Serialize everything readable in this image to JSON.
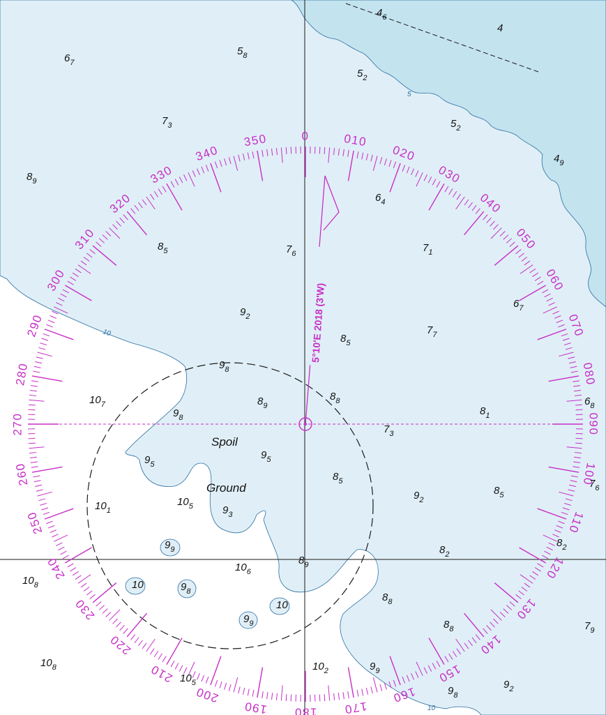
{
  "colors": {
    "deep_water": "#ffffff",
    "shallow_water": "#e0eff7",
    "drying_shoal": "#c3e3ef",
    "grid_line": "#1a1a1a",
    "compass": "#c72ec7",
    "depth_contour": "#2a6da0",
    "sounding_text": "#111111"
  },
  "compass_rose": {
    "bearing_labels": [
      "0",
      "010",
      "020",
      "030",
      "040",
      "050",
      "060",
      "070",
      "080",
      "090",
      "100",
      "110",
      "120",
      "130",
      "140",
      "150",
      "160",
      "170",
      "180",
      "190",
      "200",
      "210",
      "220",
      "230",
      "240",
      "250",
      "260",
      "270",
      "280",
      "290",
      "300",
      "310",
      "320",
      "330",
      "340",
      "350"
    ],
    "magnetic_variation": "5°10'E 2018 (3'W)"
  },
  "contour_labels": [
    "10",
    "5",
    "10"
  ],
  "area_label": {
    "line1": "Spoil",
    "line2": "Ground"
  },
  "soundings": [
    {
      "m": "6",
      "d": "7"
    },
    {
      "m": "5",
      "d": "8"
    },
    {
      "m": "4",
      "d": "6"
    },
    {
      "m": "4",
      "d": ""
    },
    {
      "m": "5",
      "d": "2"
    },
    {
      "m": "7",
      "d": "3"
    },
    {
      "m": "5",
      "d": "2"
    },
    {
      "m": "8",
      "d": "9"
    },
    {
      "m": "4",
      "d": "9"
    },
    {
      "m": "6",
      "d": "4"
    },
    {
      "m": "8",
      "d": "5"
    },
    {
      "m": "7",
      "d": "6"
    },
    {
      "m": "7",
      "d": "1"
    },
    {
      "m": "6",
      "d": "7"
    },
    {
      "m": "9",
      "d": "2"
    },
    {
      "m": "7",
      "d": "7"
    },
    {
      "m": "8",
      "d": "5"
    },
    {
      "m": "9",
      "d": "8"
    },
    {
      "m": "10",
      "d": "7"
    },
    {
      "m": "8",
      "d": "9"
    },
    {
      "m": "8",
      "d": "8"
    },
    {
      "m": "6",
      "d": "8"
    },
    {
      "m": "9",
      "d": "8"
    },
    {
      "m": "8",
      "d": "1"
    },
    {
      "m": "7",
      "d": "3"
    },
    {
      "m": "9",
      "d": "5"
    },
    {
      "m": "9",
      "d": "5"
    },
    {
      "m": "8",
      "d": "5"
    },
    {
      "m": "7",
      "d": "6"
    },
    {
      "m": "10",
      "d": "1"
    },
    {
      "m": "10",
      "d": "5"
    },
    {
      "m": "9",
      "d": "3"
    },
    {
      "m": "9",
      "d": "2"
    },
    {
      "m": "8",
      "d": "5"
    },
    {
      "m": "9",
      "d": "9"
    },
    {
      "m": "8",
      "d": "2"
    },
    {
      "m": "8",
      "d": "2"
    },
    {
      "m": "10",
      "d": "8"
    },
    {
      "m": "8",
      "d": "9"
    },
    {
      "m": "10",
      "d": "6"
    },
    {
      "m": "10",
      "d": ""
    },
    {
      "m": "9",
      "d": "8"
    },
    {
      "m": "8",
      "d": "8"
    },
    {
      "m": "10",
      "d": ""
    },
    {
      "m": "9",
      "d": "9"
    },
    {
      "m": "8",
      "d": "8"
    },
    {
      "m": "7",
      "d": "9"
    },
    {
      "m": "10",
      "d": "8"
    },
    {
      "m": "10",
      "d": "2"
    },
    {
      "m": "9",
      "d": "9"
    },
    {
      "m": "10",
      "d": "5"
    },
    {
      "m": "9",
      "d": "8"
    },
    {
      "m": "9",
      "d": "2"
    }
  ]
}
